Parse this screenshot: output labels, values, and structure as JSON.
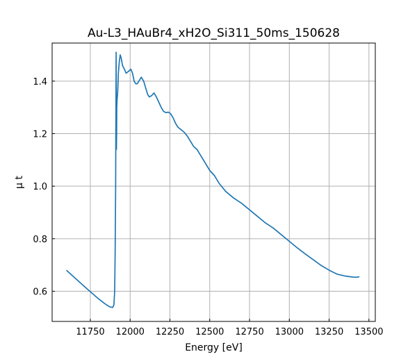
{
  "chart_data": {
    "type": "line",
    "title": "Au-L3_HAuBr4_xH2O_Si311_50ms_150628",
    "xlabel": "Energy [eV]",
    "ylabel": "μ t",
    "xlim": [
      11510,
      13540
    ],
    "ylim": [
      0.485,
      1.545
    ],
    "grid": true,
    "xticks": [
      11750,
      12000,
      12250,
      12500,
      12750,
      13000,
      13250,
      13500
    ],
    "yticks": [
      0.6,
      0.8,
      1.0,
      1.2,
      1.4
    ],
    "ytick_labels": [
      "0.6",
      "0.8",
      "1.0",
      "1.2",
      "1.4"
    ],
    "series": [
      {
        "color": "#1f77b4",
        "x": [
          11600,
          11650,
          11700,
          11750,
          11800,
          11840,
          11870,
          11890,
          11898,
          11903,
          11906,
          11909,
          11912,
          11913,
          11914,
          11915,
          11916,
          11918,
          11922,
          11926,
          11932,
          11938,
          11945,
          11952,
          11960,
          11968,
          11975,
          11985,
          11995,
          12005,
          12015,
          12025,
          12035,
          12045,
          12055,
          12070,
          12085,
          12100,
          12110,
          12120,
          12135,
          12150,
          12165,
          12180,
          12195,
          12210,
          12225,
          12240,
          12255,
          12270,
          12285,
          12300,
          12320,
          12340,
          12360,
          12380,
          12400,
          12420,
          12440,
          12460,
          12480,
          12500,
          12530,
          12560,
          12600,
          12650,
          12700,
          12750,
          12800,
          12850,
          12900,
          12950,
          13000,
          13050,
          13100,
          13150,
          13200,
          13250,
          13300,
          13350,
          13400,
          13420,
          13440
        ],
        "y": [
          0.68,
          0.652,
          0.625,
          0.598,
          0.572,
          0.553,
          0.541,
          0.538,
          0.548,
          0.6,
          0.75,
          1.0,
          1.51,
          1.35,
          1.14,
          1.2,
          1.3,
          1.33,
          1.36,
          1.43,
          1.475,
          1.5,
          1.485,
          1.46,
          1.45,
          1.44,
          1.43,
          1.435,
          1.44,
          1.445,
          1.43,
          1.4,
          1.39,
          1.39,
          1.4,
          1.415,
          1.4,
          1.37,
          1.35,
          1.34,
          1.345,
          1.355,
          1.34,
          1.32,
          1.3,
          1.285,
          1.28,
          1.282,
          1.275,
          1.26,
          1.24,
          1.225,
          1.215,
          1.205,
          1.19,
          1.17,
          1.15,
          1.14,
          1.12,
          1.1,
          1.08,
          1.06,
          1.04,
          1.01,
          0.98,
          0.955,
          0.935,
          0.91,
          0.885,
          0.86,
          0.84,
          0.815,
          0.79,
          0.765,
          0.742,
          0.72,
          0.698,
          0.68,
          0.665,
          0.658,
          0.654,
          0.653,
          0.655
        ]
      }
    ]
  }
}
